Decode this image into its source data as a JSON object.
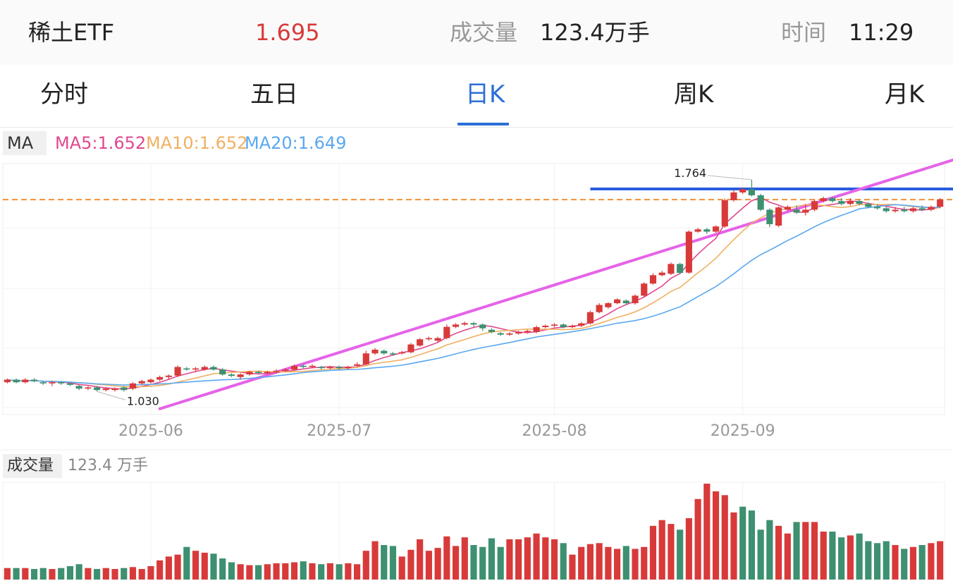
{
  "header": {
    "name": "稀土ETF",
    "price": "1.695",
    "volume_label": "成交量",
    "volume_value": "123.4万手",
    "time_label": "时间",
    "time_value": "11:29"
  },
  "tabs": [
    {
      "label": "分时",
      "active": false
    },
    {
      "label": "五日",
      "active": false
    },
    {
      "label": "日K",
      "active": true
    },
    {
      "label": "周K",
      "active": false
    },
    {
      "label": "月K",
      "active": false
    }
  ],
  "indicators": {
    "label": "MA",
    "ma5": "MA5:1.652",
    "ma10": "MA10:1.652",
    "ma20": "MA20:1.649"
  },
  "volume_panel": {
    "label": "成交量",
    "value": "123.4 万手"
  },
  "colors": {
    "up": "#d83a3a",
    "down": "#3d9070",
    "ma5": "#e0488f",
    "ma10": "#f0b062",
    "ma20": "#5aa8f0",
    "active_tab": "#2b6fd6",
    "price_text": "#d83a3a",
    "resistance_line": "#2a5ce0",
    "trend_line": "#e563e8",
    "current_price_line": "#f0913a"
  },
  "chart_data": {
    "type": "candlestick",
    "x_tick_labels": [
      "2025-06",
      "2025-07",
      "2025-08",
      "2025-09"
    ],
    "max_label": "1.764",
    "min_label": "1.030",
    "current_price_line": 1.695,
    "resistance_line": 1.732,
    "trend_line": {
      "from": [
        17,
        0.97
      ],
      "to": [
        98,
        1.76
      ]
    },
    "candles": [
      [
        1.062,
        1.071,
        1.075,
        1.058
      ],
      [
        1.071,
        1.062,
        1.075,
        1.058
      ],
      [
        1.062,
        1.071,
        1.076,
        1.058
      ],
      [
        1.071,
        1.066,
        1.076,
        1.062
      ],
      [
        1.062,
        1.058,
        1.066,
        1.053
      ],
      [
        1.058,
        1.062,
        1.066,
        1.049
      ],
      [
        1.062,
        1.058,
        1.066,
        1.053
      ],
      [
        1.058,
        1.053,
        1.062,
        1.049
      ],
      [
        1.049,
        1.04,
        1.053,
        1.035
      ],
      [
        1.04,
        1.044,
        1.049,
        1.035
      ],
      [
        1.044,
        1.035,
        1.049,
        1.03
      ],
      [
        1.035,
        1.04,
        1.044,
        1.03
      ],
      [
        1.035,
        1.04,
        1.044,
        1.03
      ],
      [
        1.044,
        1.035,
        1.049,
        1.03
      ],
      [
        1.04,
        1.058,
        1.062,
        1.035
      ],
      [
        1.058,
        1.066,
        1.071,
        1.053
      ],
      [
        1.062,
        1.071,
        1.075,
        1.058
      ],
      [
        1.071,
        1.08,
        1.085,
        1.066
      ],
      [
        1.08,
        1.085,
        1.089,
        1.071
      ],
      [
        1.085,
        1.115,
        1.12,
        1.08
      ],
      [
        1.11,
        1.106,
        1.115,
        1.102
      ],
      [
        1.106,
        1.11,
        1.115,
        1.097
      ],
      [
        1.106,
        1.115,
        1.12,
        1.102
      ],
      [
        1.115,
        1.106,
        1.12,
        1.102
      ],
      [
        1.106,
        1.089,
        1.111,
        1.085
      ],
      [
        1.089,
        1.084,
        1.093,
        1.08
      ],
      [
        1.08,
        1.089,
        1.093,
        1.071
      ],
      [
        1.089,
        1.098,
        1.102,
        1.085
      ],
      [
        1.098,
        1.094,
        1.102,
        1.089
      ],
      [
        1.094,
        1.098,
        1.102,
        1.089
      ],
      [
        1.098,
        1.102,
        1.107,
        1.093
      ],
      [
        1.102,
        1.106,
        1.111,
        1.098
      ],
      [
        1.106,
        1.119,
        1.124,
        1.102
      ],
      [
        1.119,
        1.115,
        1.124,
        1.111
      ],
      [
        1.115,
        1.119,
        1.124,
        1.111
      ],
      [
        1.115,
        1.111,
        1.119,
        1.106
      ],
      [
        1.111,
        1.115,
        1.119,
        1.106
      ],
      [
        1.115,
        1.111,
        1.12,
        1.106
      ],
      [
        1.111,
        1.115,
        1.119,
        1.106
      ],
      [
        1.119,
        1.124,
        1.131,
        1.115
      ],
      [
        1.124,
        1.162,
        1.171,
        1.12
      ],
      [
        1.162,
        1.175,
        1.18,
        1.157
      ],
      [
        1.171,
        1.162,
        1.175,
        1.157
      ],
      [
        1.162,
        1.158,
        1.167,
        1.154
      ],
      [
        1.162,
        1.166,
        1.171,
        1.158
      ],
      [
        1.166,
        1.193,
        1.198,
        1.162
      ],
      [
        1.189,
        1.211,
        1.215,
        1.185
      ],
      [
        1.211,
        1.215,
        1.22,
        1.206
      ],
      [
        1.206,
        1.215,
        1.22,
        1.202
      ],
      [
        1.215,
        1.254,
        1.262,
        1.211
      ],
      [
        1.254,
        1.262,
        1.267,
        1.249
      ],
      [
        1.262,
        1.267,
        1.272,
        1.258
      ],
      [
        1.267,
        1.262,
        1.271,
        1.254
      ],
      [
        1.262,
        1.249,
        1.266,
        1.24
      ],
      [
        1.244,
        1.236,
        1.249,
        1.232
      ],
      [
        1.232,
        1.227,
        1.236,
        1.223
      ],
      [
        1.227,
        1.231,
        1.236,
        1.223
      ],
      [
        1.231,
        1.236,
        1.24,
        1.227
      ],
      [
        1.236,
        1.24,
        1.244,
        1.231
      ],
      [
        1.236,
        1.253,
        1.258,
        1.232
      ],
      [
        1.253,
        1.258,
        1.262,
        1.249
      ],
      [
        1.258,
        1.262,
        1.267,
        1.253
      ],
      [
        1.262,
        1.253,
        1.266,
        1.249
      ],
      [
        1.253,
        1.258,
        1.262,
        1.249
      ],
      [
        1.258,
        1.266,
        1.271,
        1.253
      ],
      [
        1.266,
        1.305,
        1.31,
        1.262
      ],
      [
        1.305,
        1.33,
        1.336,
        1.301
      ],
      [
        1.322,
        1.336,
        1.34,
        1.317
      ],
      [
        1.336,
        1.349,
        1.353,
        1.332
      ],
      [
        1.345,
        1.336,
        1.349,
        1.331
      ],
      [
        1.336,
        1.362,
        1.366,
        1.331
      ],
      [
        1.362,
        1.404,
        1.409,
        1.357
      ],
      [
        1.404,
        1.433,
        1.44,
        1.4
      ],
      [
        1.433,
        1.442,
        1.448,
        1.429
      ],
      [
        1.438,
        1.472,
        1.477,
        1.434
      ],
      [
        1.472,
        1.441,
        1.476,
        1.437
      ],
      [
        1.442,
        1.584,
        1.588,
        1.438
      ],
      [
        1.584,
        1.592,
        1.597,
        1.58
      ],
      [
        1.592,
        1.584,
        1.597,
        1.576
      ],
      [
        1.584,
        1.602,
        1.606,
        1.58
      ],
      [
        1.602,
        1.693,
        1.699,
        1.597
      ],
      [
        1.693,
        1.72,
        1.728,
        1.688
      ],
      [
        1.72,
        1.731,
        1.735,
        1.715
      ],
      [
        1.731,
        1.71,
        1.764,
        1.706
      ],
      [
        1.71,
        1.66,
        1.715,
        1.655
      ],
      [
        1.66,
        1.61,
        1.665,
        1.6
      ],
      [
        1.605,
        1.668,
        1.672,
        1.6
      ],
      [
        1.66,
        1.67,
        1.675,
        1.655
      ],
      [
        1.66,
        1.65,
        1.675,
        1.645
      ],
      [
        1.65,
        1.66,
        1.68,
        1.64
      ],
      [
        1.66,
        1.69,
        1.695,
        1.655
      ],
      [
        1.69,
        1.7,
        1.705,
        1.685
      ],
      [
        1.7,
        1.69,
        1.705,
        1.685
      ],
      [
        1.69,
        1.68,
        1.7,
        1.675
      ],
      [
        1.68,
        1.69,
        1.7,
        1.675
      ],
      [
        1.69,
        1.68,
        1.695,
        1.675
      ],
      [
        1.68,
        1.67,
        1.685,
        1.665
      ],
      [
        1.67,
        1.665,
        1.68,
        1.66
      ],
      [
        1.665,
        1.655,
        1.67,
        1.65
      ],
      [
        1.655,
        1.66,
        1.67,
        1.65
      ],
      [
        1.66,
        1.655,
        1.67,
        1.65
      ],
      [
        1.655,
        1.665,
        1.67,
        1.65
      ],
      [
        1.665,
        1.66,
        1.675,
        1.655
      ],
      [
        1.66,
        1.67,
        1.675,
        1.655
      ],
      [
        1.67,
        1.695,
        1.7,
        1.665
      ]
    ],
    "volume": [
      12,
      12,
      12,
      11,
      12,
      11,
      12,
      14,
      16,
      12,
      11,
      12,
      11,
      12,
      13,
      11,
      14,
      20,
      24,
      26,
      34,
      30,
      28,
      27,
      22,
      18,
      16,
      15,
      15,
      16,
      17,
      17,
      18,
      19,
      17,
      16,
      17,
      16,
      17,
      16,
      30,
      40,
      36,
      35,
      24,
      31,
      42,
      30,
      33,
      45,
      35,
      44,
      36,
      34,
      43,
      34,
      42,
      42,
      44,
      48,
      44,
      42,
      38,
      26,
      34,
      37,
      38,
      34,
      32,
      35,
      32,
      34,
      56,
      62,
      58,
      52,
      64,
      84,
      100,
      92,
      88,
      70,
      76,
      72,
      52,
      62,
      56,
      48,
      60,
      60,
      60,
      50,
      50,
      44,
      46,
      48,
      40,
      38,
      40,
      36,
      32,
      34,
      36,
      38,
      40
    ],
    "volume_up": [
      1,
      0,
      1,
      0,
      0,
      1,
      0,
      0,
      0,
      1,
      0,
      1,
      1,
      0,
      1,
      1,
      1,
      1,
      1,
      1,
      0,
      1,
      1,
      0,
      0,
      0,
      1,
      1,
      0,
      1,
      1,
      1,
      1,
      0,
      1,
      0,
      1,
      0,
      1,
      1,
      1,
      1,
      0,
      0,
      1,
      1,
      1,
      1,
      1,
      1,
      1,
      1,
      0,
      0,
      0,
      0,
      1,
      1,
      1,
      1,
      1,
      1,
      0,
      1,
      1,
      1,
      1,
      1,
      1,
      0,
      1,
      1,
      1,
      1,
      1,
      0,
      1,
      1,
      1,
      1,
      1,
      1,
      0,
      0,
      0,
      0,
      1,
      1,
      0,
      1,
      1,
      1,
      0,
      0,
      1,
      0,
      0,
      0,
      0,
      1,
      0,
      1,
      0,
      1,
      1
    ]
  }
}
